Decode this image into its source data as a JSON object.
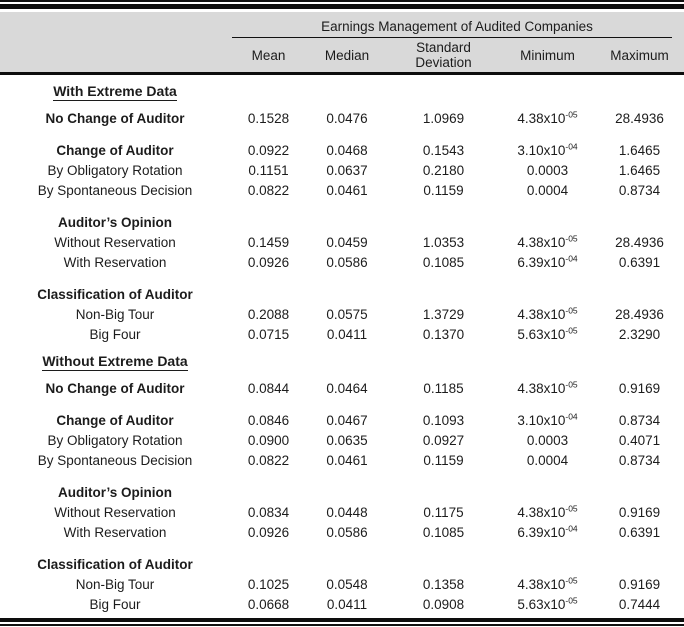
{
  "table": {
    "title": "Earnings Management of Audited Companies",
    "columns": [
      "Mean",
      "Median",
      "Standard Deviation",
      "Minimum",
      "Maximum"
    ],
    "sections": [
      {
        "heading": "With Extreme Data",
        "groups": [
          {
            "rows": [
              {
                "label": "No Change of Auditor",
                "bold": true,
                "mean": "0.1528",
                "median": "0.0476",
                "sd": "1.0969",
                "min": {
                  "b": "4.38x10",
                  "s": "-05"
                },
                "max": "28.4936"
              }
            ]
          },
          {
            "rows": [
              {
                "label": "Change of Auditor",
                "bold": true,
                "mean": "0.0922",
                "median": "0.0468",
                "sd": "0.1543",
                "min": {
                  "b": "3.10x10",
                  "s": "-04"
                },
                "max": "1.6465"
              },
              {
                "label": "By Obligatory Rotation",
                "bold": false,
                "mean": "0.1151",
                "median": "0.0637",
                "sd": "0.2180",
                "min": {
                  "b": "0.0003",
                  "s": ""
                },
                "max": "1.6465"
              },
              {
                "label": "By Spontaneous Decision",
                "bold": false,
                "mean": "0.0822",
                "median": "0.0461",
                "sd": "0.1159",
                "min": {
                  "b": "0.0004",
                  "s": ""
                },
                "max": "0.8734"
              }
            ]
          },
          {
            "rows": [
              {
                "label": "Auditor’s Opinion",
                "bold": true,
                "mean": "",
                "median": "",
                "sd": "",
                "min": {
                  "b": "",
                  "s": ""
                },
                "max": ""
              },
              {
                "label": "Without Reservation",
                "bold": false,
                "mean": "0.1459",
                "median": "0.0459",
                "sd": "1.0353",
                "min": {
                  "b": "4.38x10",
                  "s": "-05"
                },
                "max": "28.4936"
              },
              {
                "label": "With Reservation",
                "bold": false,
                "mean": "0.0926",
                "median": "0.0586",
                "sd": "0.1085",
                "min": {
                  "b": "6.39x10",
                  "s": "-04"
                },
                "max": "0.6391"
              }
            ]
          },
          {
            "rows": [
              {
                "label": "Classification of Auditor",
                "bold": true,
                "mean": "",
                "median": "",
                "sd": "",
                "min": {
                  "b": "",
                  "s": ""
                },
                "max": ""
              },
              {
                "label": "Non-Big Tour",
                "bold": false,
                "mean": "0.2088",
                "median": "0.0575",
                "sd": "1.3729",
                "min": {
                  "b": "4.38x10",
                  "s": "-05"
                },
                "max": "28.4936"
              },
              {
                "label": "Big Four",
                "bold": false,
                "mean": "0.0715",
                "median": "0.0411",
                "sd": "0.1370",
                "min": {
                  "b": "5.63x10",
                  "s": "-05"
                },
                "max": "2.3290"
              }
            ]
          }
        ]
      },
      {
        "heading": "Without Extreme Data",
        "groups": [
          {
            "rows": [
              {
                "label": "No Change of Auditor",
                "bold": true,
                "mean": "0.0844",
                "median": "0.0464",
                "sd": "0.1185",
                "min": {
                  "b": "4.38x10",
                  "s": "-05"
                },
                "max": "0.9169"
              }
            ]
          },
          {
            "rows": [
              {
                "label": "Change of Auditor",
                "bold": true,
                "mean": "0.0846",
                "median": "0.0467",
                "sd": "0.1093",
                "min": {
                  "b": "3.10x10",
                  "s": "-04"
                },
                "max": "0.8734"
              },
              {
                "label": "By Obligatory Rotation",
                "bold": false,
                "mean": "0.0900",
                "median": "0.0635",
                "sd": "0.0927",
                "min": {
                  "b": "0.0003",
                  "s": ""
                },
                "max": "0.4071"
              },
              {
                "label": "By Spontaneous Decision",
                "bold": false,
                "mean": "0.0822",
                "median": "0.0461",
                "sd": "0.1159",
                "min": {
                  "b": "0.0004",
                  "s": ""
                },
                "max": "0.8734"
              }
            ]
          },
          {
            "rows": [
              {
                "label": "Auditor’s Opinion",
                "bold": true,
                "mean": "",
                "median": "",
                "sd": "",
                "min": {
                  "b": "",
                  "s": ""
                },
                "max": ""
              },
              {
                "label": "Without Reservation",
                "bold": false,
                "mean": "0.0834",
                "median": "0.0448",
                "sd": "0.1175",
                "min": {
                  "b": "4.38x10",
                  "s": "-05"
                },
                "max": "0.9169"
              },
              {
                "label": "With Reservation",
                "bold": false,
                "mean": "0.0926",
                "median": "0.0586",
                "sd": "0.1085",
                "min": {
                  "b": "6.39x10",
                  "s": "-04"
                },
                "max": "0.6391"
              }
            ]
          },
          {
            "rows": [
              {
                "label": "Classification of Auditor",
                "bold": true,
                "mean": "",
                "median": "",
                "sd": "",
                "min": {
                  "b": "",
                  "s": ""
                },
                "max": ""
              },
              {
                "label": "Non-Big Tour",
                "bold": false,
                "mean": "0.1025",
                "median": "0.0548",
                "sd": "0.1358",
                "min": {
                  "b": "4.38x10",
                  "s": "-05"
                },
                "max": "0.9169"
              },
              {
                "label": "Big Four",
                "bold": false,
                "mean": "0.0668",
                "median": "0.0411",
                "sd": "0.0908",
                "min": {
                  "b": "5.63x10",
                  "s": "-05"
                },
                "max": "0.7444"
              }
            ]
          }
        ]
      }
    ],
    "colors": {
      "header_bg": "#d9d9d9",
      "rule": "#0d0d0d",
      "text": "#1c1c1c"
    }
  }
}
